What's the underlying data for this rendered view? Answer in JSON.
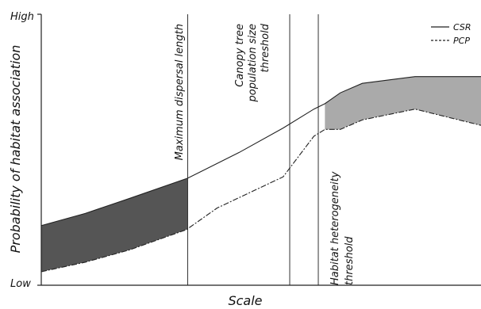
{
  "chart_data": {
    "type": "line",
    "xlabel": "Scale",
    "ylabel": "Probability of habitat association",
    "y_tick_labels": {
      "high": "High",
      "low": "Low"
    },
    "xlim": [
      0,
      100
    ],
    "ylim": [
      0,
      100
    ],
    "series": [
      {
        "name": "CSR",
        "style": "solid",
        "x": [
          0,
          10,
          20,
          33.3,
          45,
          55,
          62,
          64.5,
          68,
          73,
          85,
          100
        ],
        "y": [
          22,
          26.5,
          32,
          39.5,
          49,
          58,
          65,
          67,
          71,
          74.5,
          77,
          77
        ]
      },
      {
        "name": "PCP",
        "style": "dash-dot",
        "x": [
          0,
          10,
          20,
          33,
          40,
          55,
          62,
          64.5,
          68,
          73,
          85,
          100
        ],
        "y": [
          5,
          8.5,
          13,
          20.5,
          28.5,
          40,
          55,
          57.5,
          57.5,
          61,
          65,
          59
        ]
      }
    ],
    "shaded_regions": [
      {
        "from_x": 0,
        "to_x": 33.3,
        "fill": "#555555"
      },
      {
        "from_x": 64.5,
        "to_x": 100,
        "fill": "#aaaaaa"
      }
    ],
    "vertical_lines": [
      {
        "x": 33.3,
        "label": "Maximum dispersal length"
      },
      {
        "x": 56.5,
        "label_lines": [
          "Canopy tree",
          "population size",
          "threshold"
        ]
      },
      {
        "x": 63.0,
        "label_lines": [
          "Habitat heterogeneity",
          "threshold"
        ]
      }
    ],
    "legend": {
      "position": "top-right",
      "entries": [
        "CSR",
        "PCP"
      ]
    }
  }
}
